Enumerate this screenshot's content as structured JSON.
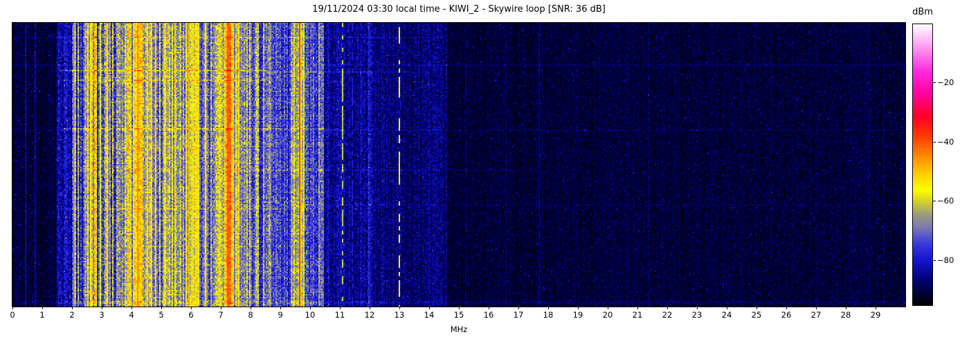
{
  "figure": {
    "title": "19/11/2024 03:30 local time - KIWI_2 - Skywire loop [SNR: 36 dB]",
    "xlabel": "MHz",
    "colorbar_label": "dBm"
  },
  "chart_data": {
    "type": "heatmap",
    "subtype": "radio-spectrogram-waterfall",
    "title": "19/11/2024 03:30 local time - KIWI_2 - Skywire loop [SNR: 36 dB]",
    "xlabel": "MHz",
    "x_range_mhz": [
      0,
      30
    ],
    "x_ticks": [
      0,
      1,
      2,
      3,
      4,
      5,
      6,
      7,
      8,
      9,
      10,
      11,
      12,
      13,
      14,
      15,
      16,
      17,
      18,
      19,
      20,
      21,
      22,
      23,
      24,
      25,
      26,
      27,
      28,
      29
    ],
    "y_axis_ticks": [],
    "grid": false,
    "colorbar": {
      "label": "dBm",
      "ticks": [
        -20,
        -40,
        -60,
        -80
      ],
      "tick_labels": [
        "−20",
        "−40",
        "−60",
        "−80"
      ],
      "range": [
        -95,
        0
      ],
      "colormap_stops": [
        [
          -95,
          "#000000"
        ],
        [
          -87,
          "#00006e"
        ],
        [
          -80,
          "#1414cd"
        ],
        [
          -74,
          "#3c3cdc"
        ],
        [
          -69,
          "#7878b4"
        ],
        [
          -64,
          "#a0a078"
        ],
        [
          -60,
          "#d2d228"
        ],
        [
          -56,
          "#ffff00"
        ],
        [
          -50,
          "#ffc800"
        ],
        [
          -44,
          "#ff8200"
        ],
        [
          -38,
          "#ff3c00"
        ],
        [
          -31,
          "#ff0028"
        ],
        [
          -24,
          "#ff0096"
        ],
        [
          -16,
          "#ff28dc"
        ],
        [
          -8,
          "#ff96f0"
        ],
        [
          0,
          "#ffffff"
        ]
      ]
    },
    "seed": 20241119,
    "bands": [
      {
        "f0": 0.0,
        "f1": 1.5,
        "b": -91,
        "cv": 1.5,
        "pv": 2.6,
        "hp": 0.02,
        "hb": 5,
        "sp": 0.04,
        "sb": 6
      },
      {
        "f0": 1.5,
        "f1": 2.0,
        "b": -83,
        "cv": 4,
        "pv": 5,
        "hp": 0.1,
        "hb": 9,
        "sp": 0.05,
        "sb": 6
      },
      {
        "f0": 2.0,
        "f1": 2.45,
        "b": -76,
        "cv": 7,
        "pv": 6,
        "hp": 0.14,
        "hb": 11,
        "sp": 0.05,
        "sb": 6
      },
      {
        "f0": 2.45,
        "f1": 2.8,
        "b": -62,
        "cv": 6,
        "pv": 6,
        "hp": 0.25,
        "hb": 8,
        "sp": 0.05,
        "sb": 5
      },
      {
        "f0": 2.8,
        "f1": 3.1,
        "b": -72,
        "cv": 9,
        "pv": 7,
        "hp": 0.22,
        "hb": 12,
        "sp": 0.05,
        "sb": 5
      },
      {
        "f0": 3.1,
        "f1": 3.3,
        "b": -65,
        "cv": 7,
        "pv": 6,
        "hp": 0.2,
        "hb": 8,
        "sp": 0.05,
        "sb": 5
      },
      {
        "f0": 3.3,
        "f1": 3.65,
        "b": -70,
        "cv": 8,
        "pv": 7,
        "hp": 0.16,
        "hb": 9,
        "sp": 0.05,
        "sb": 5
      },
      {
        "f0": 3.65,
        "f1": 4.05,
        "b": -65,
        "cv": 7,
        "pv": 6,
        "hp": 0.2,
        "hb": 8,
        "sp": 0.05,
        "sb": 5
      },
      {
        "f0": 4.05,
        "f1": 4.35,
        "b": -54,
        "cv": 5,
        "pv": 6,
        "hp": 0.3,
        "hb": 8,
        "sp": 0.05,
        "sb": 5
      },
      {
        "f0": 4.35,
        "f1": 4.75,
        "b": -64,
        "cv": 7,
        "pv": 6,
        "hp": 0.2,
        "hb": 8,
        "sp": 0.05,
        "sb": 5
      },
      {
        "f0": 4.75,
        "f1": 5.1,
        "b": -69,
        "cv": 8,
        "pv": 6,
        "hp": 0.16,
        "hb": 9,
        "sp": 0.05,
        "sb": 5
      },
      {
        "f0": 5.1,
        "f1": 5.5,
        "b": -64,
        "cv": 7,
        "pv": 6,
        "hp": 0.2,
        "hb": 8,
        "sp": 0.05,
        "sb": 5
      },
      {
        "f0": 5.5,
        "f1": 5.8,
        "b": -68,
        "cv": 8,
        "pv": 6,
        "hp": 0.16,
        "hb": 8,
        "sp": 0.05,
        "sb": 5
      },
      {
        "f0": 5.8,
        "f1": 6.3,
        "b": -59,
        "cv": 6,
        "pv": 6,
        "hp": 0.3,
        "hb": 8,
        "sp": 0.05,
        "sb": 5
      },
      {
        "f0": 6.3,
        "f1": 6.65,
        "b": -69,
        "cv": 8,
        "pv": 6,
        "hp": 0.16,
        "hb": 9,
        "sp": 0.05,
        "sb": 5
      },
      {
        "f0": 6.65,
        "f1": 7.1,
        "b": -64,
        "cv": 7,
        "pv": 6,
        "hp": 0.2,
        "hb": 8,
        "sp": 0.05,
        "sb": 5
      },
      {
        "f0": 7.1,
        "f1": 7.45,
        "b": -52,
        "cv": 5,
        "pv": 6,
        "hp": 0.35,
        "hb": 8,
        "sp": 0.05,
        "sb": 5
      },
      {
        "f0": 7.45,
        "f1": 7.75,
        "b": -63,
        "cv": 7,
        "pv": 6,
        "hp": 0.2,
        "hb": 8,
        "sp": 0.05,
        "sb": 5
      },
      {
        "f0": 7.75,
        "f1": 8.3,
        "b": -68,
        "cv": 8,
        "pv": 6,
        "hp": 0.15,
        "hb": 9,
        "sp": 0.05,
        "sb": 5
      },
      {
        "f0": 8.3,
        "f1": 8.85,
        "b": -72,
        "cv": 8,
        "pv": 6,
        "hp": 0.12,
        "hb": 10,
        "sp": 0.05,
        "sb": 5
      },
      {
        "f0": 8.85,
        "f1": 9.35,
        "b": -77,
        "cv": 6,
        "pv": 6,
        "hp": 0.08,
        "hb": 8,
        "sp": 0.05,
        "sb": 5
      },
      {
        "f0": 9.35,
        "f1": 9.8,
        "b": -64,
        "cv": 7,
        "pv": 6,
        "hp": 0.25,
        "hb": 9,
        "sp": 0.05,
        "sb": 5
      },
      {
        "f0": 9.8,
        "f1": 10.45,
        "b": -75,
        "cv": 5,
        "pv": 6,
        "hp": 0.1,
        "hb": 7,
        "sp": 0.05,
        "sb": 5
      },
      {
        "f0": 10.45,
        "f1": 11.25,
        "b": -84,
        "cv": 3,
        "pv": 4.5,
        "hp": 0.06,
        "hb": 5,
        "sp": 0.04,
        "sb": 5
      },
      {
        "f0": 11.25,
        "f1": 12.15,
        "b": -85,
        "cv": 2.5,
        "pv": 4.5,
        "hp": 0.05,
        "hb": 4,
        "sp": 0.04,
        "sb": 5
      },
      {
        "f0": 12.15,
        "f1": 13.2,
        "b": -86.5,
        "cv": 2,
        "pv": 4,
        "hp": 0.04,
        "hb": 4,
        "sp": 0.04,
        "sb": 5
      },
      {
        "f0": 13.2,
        "f1": 14.6,
        "b": -87,
        "cv": 2,
        "pv": 4,
        "hp": 0.04,
        "hb": 3,
        "sp": 0.04,
        "sb": 5
      },
      {
        "f0": 14.6,
        "f1": 30,
        "b": -91,
        "cv": 1,
        "pv": 2.6,
        "hp": 0.012,
        "hb": 3,
        "sp": 0.035,
        "sb": 5
      }
    ],
    "carrier_lines": [
      {
        "f": 1.53,
        "w": 0.035,
        "lvl": -74
      },
      {
        "f": 2.07,
        "w": 0.04,
        "lvl": -64
      },
      {
        "f": 2.63,
        "w": 0.08,
        "lvl": -57
      },
      {
        "f": 2.95,
        "w": 0.05,
        "lvl": -58
      },
      {
        "f": 4.2,
        "w": 0.06,
        "lvl": -45
      },
      {
        "f": 5.95,
        "w": 0.05,
        "lvl": -48
      },
      {
        "f": 7.25,
        "w": 0.07,
        "lvl": -41
      },
      {
        "f": 9.26,
        "w": 0.03,
        "lvl": -48
      },
      {
        "f": 9.45,
        "w": 0.03,
        "lvl": -51
      },
      {
        "f": 9.66,
        "w": 0.035,
        "lvl": -38
      },
      {
        "f": 11.1,
        "w": 0.05,
        "lvl": -61,
        "dash": true
      },
      {
        "f": 11.42,
        "w": 0.03,
        "lvl": -79,
        "dash": true
      },
      {
        "f": 11.77,
        "w": 0.03,
        "lvl": -78,
        "dash": true
      },
      {
        "f": 12.02,
        "w": 0.03,
        "lvl": -81,
        "dash": true
      },
      {
        "f": 13.0,
        "w": 0.05,
        "lvl": -57,
        "dash": true
      },
      {
        "f": 13.77,
        "w": 0.03,
        "lvl": -82,
        "dash": true
      },
      {
        "f": 14.4,
        "w": 0.03,
        "lvl": -84,
        "dash": true
      },
      {
        "f": 15.23,
        "w": 0.03,
        "lvl": -87,
        "dash": true
      },
      {
        "f": 16.75,
        "w": 0.03,
        "lvl": -88,
        "dash": true
      },
      {
        "f": 20.0,
        "w": 0.03,
        "lvl": -89,
        "dash": true
      },
      {
        "f": 25.9,
        "w": 0.03,
        "lvl": -89,
        "dash": true
      }
    ],
    "time_streaks": [
      {
        "y": 0.05,
        "f0": 0,
        "f1": 14.5,
        "boost": 3,
        "h": 1
      },
      {
        "y": 0.151,
        "f0": 0,
        "f1": 30,
        "boost": 3,
        "h": 1
      },
      {
        "y": 0.17,
        "f0": 1.6,
        "f1": 8.5,
        "boost": 9,
        "h": 1
      },
      {
        "y": 0.173,
        "f0": 8.5,
        "f1": 14,
        "boost": 4,
        "h": 1
      },
      {
        "y": 0.2,
        "f0": 1.6,
        "f1": 8.5,
        "boost": 5,
        "h": 1
      },
      {
        "y": 0.373,
        "f0": 1.6,
        "f1": 10.5,
        "boost": 6,
        "h": 1
      },
      {
        "y": 0.378,
        "f0": 0,
        "f1": 30,
        "boost": 2.5,
        "h": 1
      },
      {
        "y": 0.44,
        "f0": 2.2,
        "f1": 7.2,
        "boost": 4,
        "h": 1
      },
      {
        "y": 0.52,
        "f0": 8,
        "f1": 17,
        "boost": 3,
        "h": 1
      },
      {
        "y": 0.64,
        "f0": 9,
        "f1": 30,
        "boost": 2.5,
        "h": 1
      },
      {
        "y": 0.655,
        "f0": 1.6,
        "f1": 9,
        "boost": 3,
        "h": 1
      },
      {
        "y": 0.985,
        "f0": 0,
        "f1": 30,
        "boost": 2.5,
        "h": 2
      }
    ]
  }
}
